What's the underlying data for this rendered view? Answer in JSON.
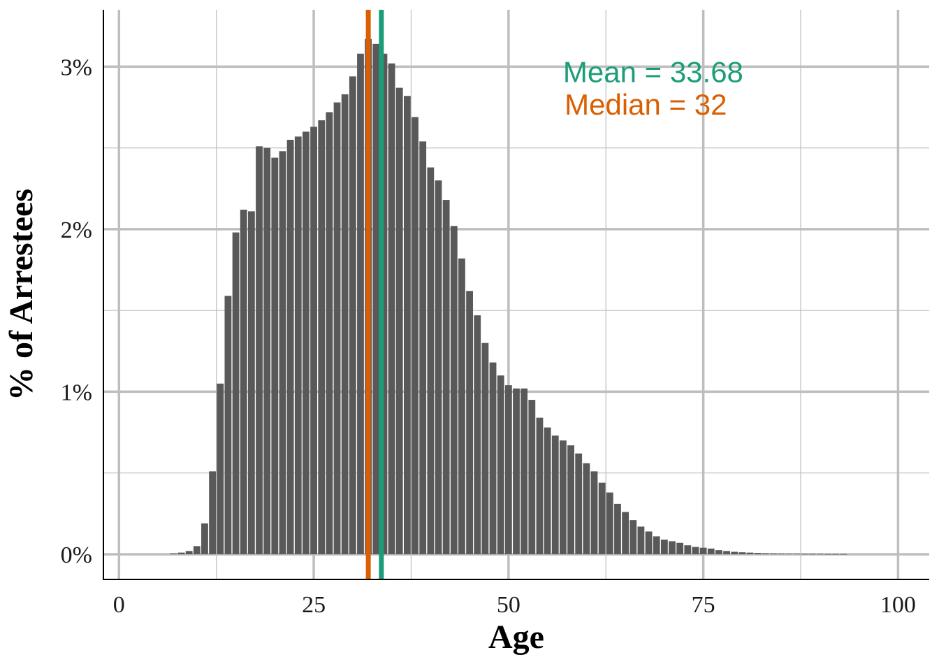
{
  "chart_data": {
    "type": "bar",
    "title": "",
    "xlabel": "Age",
    "ylabel": "% of Arrestees",
    "xlim": [
      -2,
      104
    ],
    "ylim": [
      -0.155,
      3.35
    ],
    "x_ticks": [
      0,
      25,
      50,
      75,
      100
    ],
    "x_tick_labels": [
      "0",
      "25",
      "50",
      "75",
      "100"
    ],
    "y_ticks": [
      0,
      1,
      2,
      3
    ],
    "y_tick_labels": [
      "0%",
      "1%",
      "2%",
      "3%"
    ],
    "grid": true,
    "legend": "none",
    "colors": {
      "bars": "#595959",
      "mean": "#1b9e77",
      "median": "#d95f02",
      "grid": "#bebebe"
    },
    "series": [
      {
        "x": [
          7,
          8,
          9,
          10,
          11,
          12,
          13,
          14,
          15,
          16,
          17,
          18,
          19,
          20,
          21,
          22,
          23,
          24,
          25,
          26,
          27,
          28,
          29,
          30,
          31,
          32,
          33,
          34,
          35,
          36,
          37,
          38,
          39,
          40,
          41,
          42,
          43,
          44,
          45,
          46,
          47,
          48,
          49,
          50,
          51,
          52,
          53,
          54,
          55,
          56,
          57,
          58,
          59,
          60,
          61,
          62,
          63,
          64,
          65,
          66,
          67,
          68,
          69,
          70,
          71,
          72,
          73,
          74,
          75,
          76,
          77,
          78,
          79,
          80,
          81,
          82,
          83,
          84,
          85,
          86,
          87,
          88,
          89,
          90,
          91,
          92,
          93
        ],
        "values": [
          0.005,
          0.01,
          0.02,
          0.05,
          0.19,
          0.51,
          1.05,
          1.59,
          1.98,
          2.12,
          2.11,
          2.51,
          2.5,
          2.44,
          2.48,
          2.55,
          2.57,
          2.6,
          2.63,
          2.67,
          2.72,
          2.78,
          2.83,
          2.94,
          3.08,
          3.17,
          3.14,
          3.08,
          3.02,
          2.87,
          2.82,
          2.69,
          2.54,
          2.38,
          2.3,
          2.18,
          2.02,
          1.82,
          1.62,
          1.47,
          1.3,
          1.18,
          1.1,
          1.04,
          1.02,
          1.02,
          0.95,
          0.84,
          0.78,
          0.73,
          0.7,
          0.67,
          0.62,
          0.56,
          0.51,
          0.44,
          0.38,
          0.31,
          0.26,
          0.21,
          0.17,
          0.14,
          0.11,
          0.09,
          0.08,
          0.07,
          0.055,
          0.045,
          0.04,
          0.035,
          0.025,
          0.02,
          0.015,
          0.012,
          0.01,
          0.008,
          0.006,
          0.005,
          0.004,
          0.003,
          0.003,
          0.002,
          0.002,
          0.002,
          0.001,
          0.001,
          0.001
        ]
      }
    ],
    "reference_lines": [
      {
        "name": "mean",
        "x": 33.68,
        "color": "#1b9e77"
      },
      {
        "name": "median",
        "x": 32,
        "color": "#d95f02"
      }
    ],
    "annotations": [
      {
        "text": "Mean = 33.68",
        "x": 57,
        "y": 2.97,
        "color": "#1b9e77"
      },
      {
        "text": "Median = 32",
        "x": 57.2,
        "y": 2.77,
        "color": "#d95f02"
      }
    ]
  }
}
